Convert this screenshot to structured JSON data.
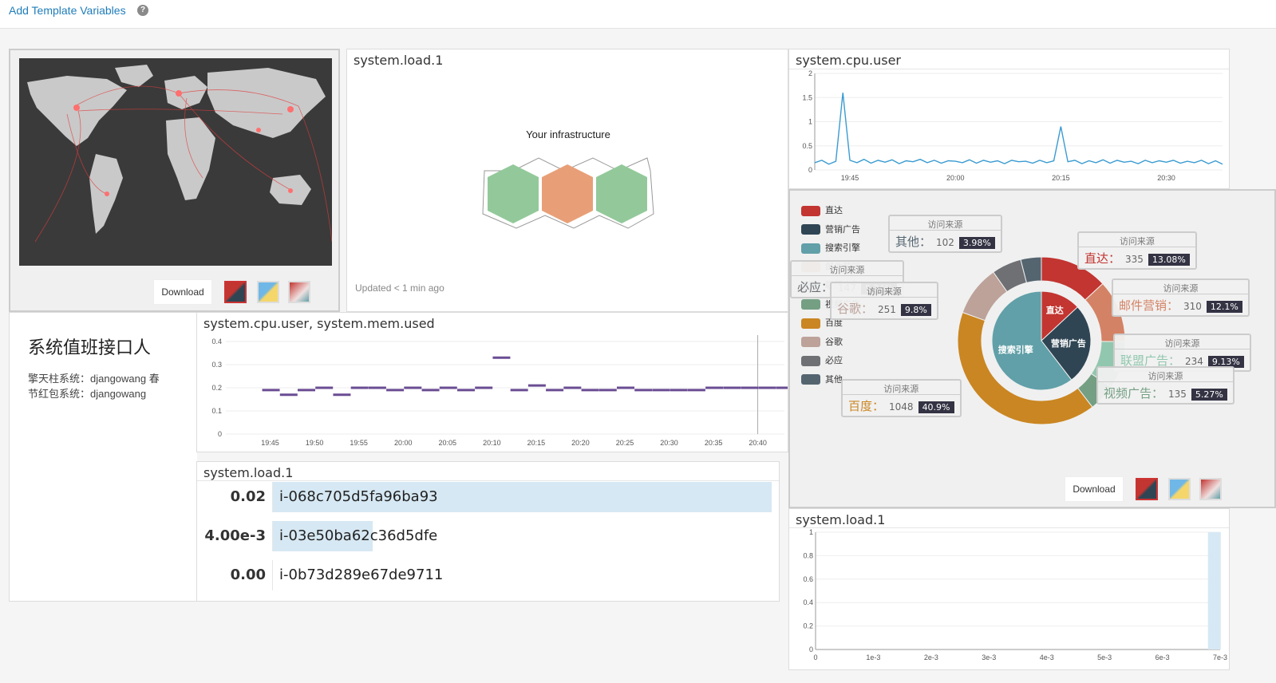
{
  "topbar": {
    "add_template_link": "Add Template Variables",
    "help_glyph": "?"
  },
  "map_panel": {
    "download_label": "Download",
    "swatches": [
      "swatch-red-dark",
      "swatch-yellow-blue",
      "swatch-red-gradient"
    ],
    "colors": {
      "land": "#c9c9c9",
      "ocean": "#3a3a3a",
      "routes": "#e23b3b"
    }
  },
  "hostmap_panel": {
    "title": "system.load.1",
    "heading": "Your infrastructure",
    "updated": "Updated < 1 min ago",
    "hex_colors": [
      "#93c99a",
      "#e89f77",
      "#93c99a"
    ]
  },
  "cpu_user_panel": {
    "title": "system.cpu.user",
    "chart_data": {
      "type": "line",
      "y_ticks": [
        "0",
        "0.5",
        "1",
        "1.5",
        "2"
      ],
      "x_ticks": [
        "19:45",
        "20:00",
        "20:15",
        "20:30"
      ],
      "ylim": [
        0,
        2
      ],
      "x": [
        "19:40",
        "19:41",
        "19:42",
        "19:43",
        "19:44",
        "19:45",
        "19:46",
        "19:47",
        "19:48",
        "19:49",
        "19:50",
        "19:51",
        "19:52",
        "19:53",
        "19:54",
        "19:55",
        "19:56",
        "19:57",
        "19:58",
        "19:59",
        "20:00",
        "20:01",
        "20:02",
        "20:03",
        "20:04",
        "20:05",
        "20:06",
        "20:07",
        "20:08",
        "20:09",
        "20:10",
        "20:11",
        "20:12",
        "20:13",
        "20:14",
        "20:15",
        "20:16",
        "20:17",
        "20:18",
        "20:19",
        "20:20",
        "20:21",
        "20:22",
        "20:23",
        "20:24",
        "20:25",
        "20:26",
        "20:27",
        "20:28",
        "20:29",
        "20:30",
        "20:31",
        "20:32",
        "20:33",
        "20:34",
        "20:35",
        "20:36",
        "20:37",
        "20:38"
      ],
      "values": [
        0.15,
        0.2,
        0.12,
        0.18,
        1.6,
        0.2,
        0.15,
        0.22,
        0.14,
        0.2,
        0.16,
        0.21,
        0.13,
        0.19,
        0.17,
        0.22,
        0.15,
        0.2,
        0.14,
        0.19,
        0.18,
        0.15,
        0.21,
        0.14,
        0.2,
        0.16,
        0.19,
        0.13,
        0.2,
        0.17,
        0.18,
        0.14,
        0.2,
        0.15,
        0.19,
        0.9,
        0.17,
        0.2,
        0.13,
        0.19,
        0.15,
        0.21,
        0.14,
        0.2,
        0.16,
        0.18,
        0.13,
        0.2,
        0.15,
        0.19,
        0.16,
        0.2,
        0.14,
        0.18,
        0.15,
        0.2,
        0.13,
        0.19,
        0.12
      ],
      "color": "#3a9bd1"
    }
  },
  "info_panel": {
    "title": "系统值班接口人",
    "lines": [
      "擎天柱系统：djangowang 春",
      "节红包系统：djangowang"
    ]
  },
  "cpu_mem_panel": {
    "title": "system.cpu.user, system.mem.used",
    "chart_data": {
      "type": "line",
      "y_ticks": [
        "0",
        "0.1",
        "0.2",
        "0.3",
        "0.4"
      ],
      "x_ticks": [
        "19:45",
        "19:50",
        "19:55",
        "20:00",
        "20:05",
        "20:10",
        "20:15",
        "20:20",
        "20:25",
        "20:30",
        "20:35",
        "20:40"
      ],
      "ylim": [
        0,
        0.4
      ],
      "x": [
        "19:45",
        "19:47",
        "19:49",
        "19:51",
        "19:53",
        "19:55",
        "19:57",
        "19:59",
        "20:01",
        "20:03",
        "20:05",
        "20:07",
        "20:09",
        "20:11",
        "20:13",
        "20:15",
        "20:17",
        "20:19",
        "20:21",
        "20:23",
        "20:25",
        "20:27",
        "20:29",
        "20:31",
        "20:33",
        "20:35",
        "20:37",
        "20:39",
        "20:41",
        "20:43"
      ],
      "values": [
        0.19,
        0.17,
        0.19,
        0.2,
        0.17,
        0.2,
        0.2,
        0.19,
        0.2,
        0.19,
        0.2,
        0.19,
        0.2,
        0.33,
        0.19,
        0.21,
        0.19,
        0.2,
        0.19,
        0.19,
        0.2,
        0.19,
        0.19,
        0.19,
        0.19,
        0.2,
        0.2,
        0.2,
        0.2,
        0.2
      ],
      "color": "#6a4c93"
    }
  },
  "toplist_panel": {
    "title": "system.load.1",
    "rows": [
      {
        "value": "0.02",
        "host": "i-068c705d5fa96ba93",
        "fraction": 1.0
      },
      {
        "value": "4.00e-3",
        "host": "i-03e50ba62c36d5dfe",
        "fraction": 0.2
      },
      {
        "value": "0.00",
        "host": "i-0b73d289e67de9711",
        "fraction": 0
      }
    ]
  },
  "pie_panel": {
    "download_label": "Download",
    "legend": [
      {
        "label": "直达",
        "color": "#c23531"
      },
      {
        "label": "营销广告",
        "color": "#2f4554"
      },
      {
        "label": "搜索引擎",
        "color": "#61a0a8"
      },
      {
        "label": "邮件营销",
        "color": "#d48265"
      },
      {
        "label": "联盟广告",
        "color": "#91c7ae"
      },
      {
        "label": "视频广告",
        "color": "#749f83"
      },
      {
        "label": "百度",
        "color": "#ca8622"
      },
      {
        "label": "谷歌",
        "color": "#bda29a"
      },
      {
        "label": "必应",
        "color": "#6e7074"
      },
      {
        "label": "其他",
        "color": "#546570"
      }
    ],
    "chart_data": {
      "type": "pie",
      "inner": [
        {
          "name": "直达",
          "value": 335,
          "color": "#c23531"
        },
        {
          "name": "营销广告",
          "value": 679,
          "color": "#2f4554"
        },
        {
          "name": "搜索引擎",
          "value": 1548,
          "color": "#61a0a8"
        }
      ],
      "outer": [
        {
          "name": "直达",
          "value": 335,
          "color": "#c23531"
        },
        {
          "name": "邮件营销",
          "value": 310,
          "color": "#d48265"
        },
        {
          "name": "联盟广告",
          "value": 234,
          "color": "#91c7ae"
        },
        {
          "name": "视频广告",
          "value": 135,
          "color": "#749f83"
        },
        {
          "name": "百度",
          "value": 1048,
          "color": "#ca8622"
        },
        {
          "name": "谷歌",
          "value": 251,
          "color": "#bda29a"
        },
        {
          "name": "必应",
          "value": 147,
          "color": "#6e7074"
        },
        {
          "name": "其他",
          "value": 102,
          "color": "#546570"
        }
      ],
      "inner_labels": [
        "直达",
        "营销广告",
        "搜索引擎"
      ]
    },
    "tooltips": [
      {
        "header": "访问来源",
        "name": "其他：",
        "value": "102",
        "pct": "3.98%",
        "color": "#546570"
      },
      {
        "header": "访问来源",
        "name": "直达：",
        "value": "335",
        "pct": "13.08%",
        "color": "#c23531"
      },
      {
        "header": "访问来源",
        "name": "必应：",
        "value": "147",
        "pct": "5.74%",
        "color": "#6e7074"
      },
      {
        "header": "访问来源",
        "name": "邮件营销：",
        "value": "310",
        "pct": "12.1%",
        "color": "#d48265"
      },
      {
        "header": "访问来源",
        "name": "谷歌：",
        "value": "251",
        "pct": "9.8%",
        "color": "#bda29a"
      },
      {
        "header": "访问来源",
        "name": "联盟广告：",
        "value": "234",
        "pct": "9.13%",
        "color": "#91c7ae"
      },
      {
        "header": "访问来源",
        "name": "视频广告：",
        "value": "135",
        "pct": "5.27%",
        "color": "#749f83"
      },
      {
        "header": "访问来源",
        "name": "百度：",
        "value": "1048",
        "pct": "40.9%",
        "color": "#ca8622"
      }
    ]
  },
  "dist_panel": {
    "title": "system.load.1",
    "chart_data": {
      "type": "bar",
      "y_ticks": [
        "0",
        "0.2",
        "0.4",
        "0.6",
        "0.8",
        "1"
      ],
      "x_ticks": [
        "0",
        "1e-3",
        "2e-3",
        "3e-3",
        "4e-3",
        "5e-3",
        "6e-3",
        "7e-3"
      ],
      "xlim": [
        0,
        0.007
      ],
      "ylim": [
        0,
        1
      ],
      "bars": [
        {
          "x": 0.0069,
          "value": 1
        }
      ],
      "color": "#d6e8f3"
    }
  }
}
